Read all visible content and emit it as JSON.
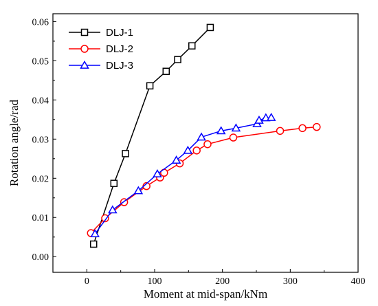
{
  "chart_data": {
    "type": "line",
    "title": "",
    "xlabel": "Moment at mid-span/kNm",
    "ylabel": "Rotation angle/rad",
    "xlim": [
      -50,
      400
    ],
    "ylim": [
      -0.004,
      0.062
    ],
    "xticks": [
      0,
      100,
      200,
      300,
      400
    ],
    "yticks": [
      0.0,
      0.01,
      0.02,
      0.03,
      0.04,
      0.05,
      0.06
    ],
    "xtick_labels": [
      "0",
      "100",
      "200",
      "300",
      "400"
    ],
    "ytick_labels": [
      "0.00",
      "0.01",
      "0.02",
      "0.03",
      "0.04",
      "0.05",
      "0.06"
    ],
    "grid": false,
    "legend_position": "top-left",
    "series": [
      {
        "name": "DLJ-1",
        "color": "#000000",
        "marker": "square",
        "x": [
          10,
          40,
          57,
          93,
          117,
          134,
          155,
          182
        ],
        "y": [
          0.0032,
          0.0187,
          0.0263,
          0.0436,
          0.0473,
          0.0503,
          0.0538,
          0.0585
        ]
      },
      {
        "name": "DLJ-2",
        "color": "#ff0000",
        "marker": "circle",
        "x": [
          6,
          27,
          55,
          88,
          108,
          114,
          137,
          162,
          178,
          216,
          285,
          318,
          339
        ],
        "y": [
          0.006,
          0.0098,
          0.0139,
          0.018,
          0.0202,
          0.0214,
          0.0238,
          0.0271,
          0.0287,
          0.0304,
          0.0321,
          0.0328,
          0.0331
        ]
      },
      {
        "name": "DLJ-3",
        "color": "#0000ff",
        "marker": "triangle",
        "x": [
          12,
          38,
          76,
          104,
          132,
          149,
          169,
          198,
          220,
          251,
          254,
          264,
          272
        ],
        "y": [
          0.0058,
          0.0119,
          0.0168,
          0.0211,
          0.0246,
          0.0271,
          0.0305,
          0.0321,
          0.0328,
          0.0339,
          0.0348,
          0.0354,
          0.0355
        ]
      }
    ]
  }
}
